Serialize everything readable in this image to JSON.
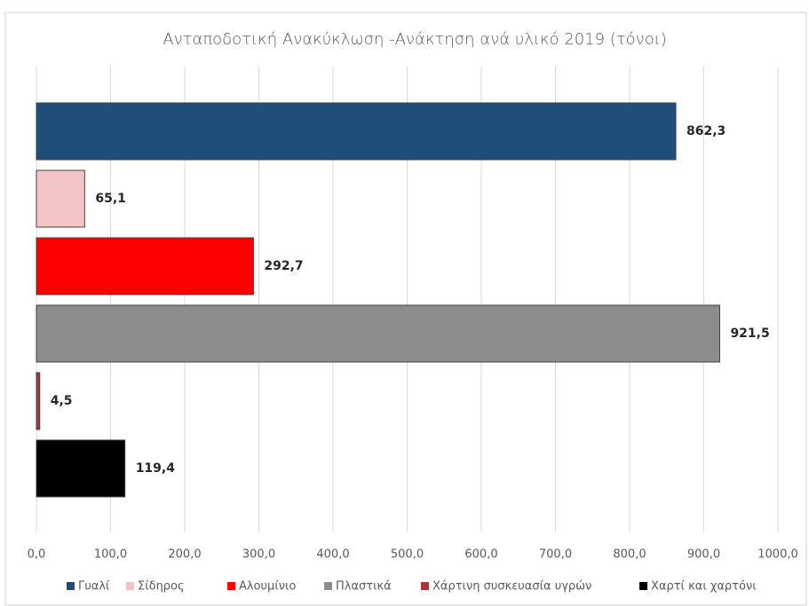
{
  "chart_data": {
    "type": "bar",
    "orientation": "horizontal",
    "title": "Ανταποδοτική Ανακύκλωση -Ανάκτηση ανά υλικό 2019 (τόνοι)",
    "series": [
      {
        "name": "Γυαλί",
        "color": "#1f4e79",
        "values": [
          862.3
        ],
        "value_labels": [
          "862,3"
        ]
      },
      {
        "name": "Σίδηρος",
        "color": "#f2c4c6",
        "values": [
          65.1
        ],
        "value_labels": [
          "65,1"
        ]
      },
      {
        "name": "Αλουμίνιο",
        "color": "#ff0000",
        "values": [
          292.7
        ],
        "value_labels": [
          "292,7"
        ]
      },
      {
        "name": "Πλαστικά",
        "color": "#8c8c8c",
        "values": [
          921.5
        ],
        "value_labels": [
          "921,5"
        ]
      },
      {
        "name": "Χάρτινη συσκευασία υγρών",
        "color": "#a33a3a",
        "values": [
          4.5
        ],
        "value_labels": [
          "4,5"
        ]
      },
      {
        "name": "Χαρτί και χαρτόνι",
        "color": "#000000",
        "values": [
          119.4
        ],
        "value_labels": [
          "119,4"
        ]
      }
    ],
    "xlim": [
      0,
      1000
    ],
    "xticks": [
      {
        "value": 0,
        "label": "0,0"
      },
      {
        "value": 100,
        "label": "100,0"
      },
      {
        "value": 200,
        "label": "200,0"
      },
      {
        "value": 300,
        "label": "300,0"
      },
      {
        "value": 400,
        "label": "400,0"
      },
      {
        "value": 500,
        "label": "500,0"
      },
      {
        "value": 600,
        "label": "600,0"
      },
      {
        "value": 700,
        "label": "700,0"
      },
      {
        "value": 800,
        "label": "800,0"
      },
      {
        "value": 900,
        "label": "900,0"
      },
      {
        "value": 1000,
        "label": "1000,0"
      }
    ],
    "grid": true,
    "legend": "bottom"
  }
}
